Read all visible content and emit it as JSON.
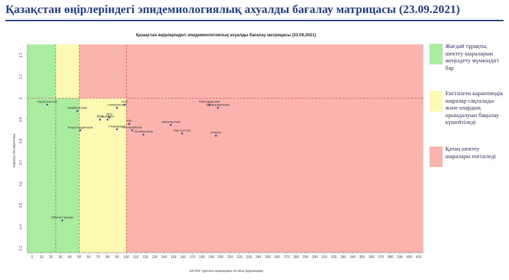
{
  "slide": {
    "title": "Қазақстан өңірлеріндегі эпидемиологиялық ахуалды бағалау матрицасы  (23.09.2021)"
  },
  "colors": {
    "title": "#1f3c88",
    "green_zone": "#a8eda0",
    "yellow_zone": "#fbf9b2",
    "red_zone": "#fbb3ae",
    "threshold_line": "#d9534f",
    "point": "#3b3b9a"
  },
  "legend": [
    {
      "label": "Жағдай тұрақты, шектеу шараларын жеңілдету мүмкіндігі бар",
      "color": "#a8eda0"
    },
    {
      "label": "Енгізілген карантиндік шаралар сақталады және олардың орындалуын бақылау күшейтіледі",
      "color": "#fbf9b2"
    },
    {
      "label": "Қатаң шектеу шаралары енгізіледі",
      "color": "#fbb3ae"
    }
  ],
  "chart_data": {
    "type": "scatter",
    "title": "Қазақстан өңірлеріндегі эпидемиологиялық ахуалды бағалау матрицасы  (23.09.2021)",
    "xlabel": "100 000 тұрғынға шаққандағы аптalық аурушаңдық",
    "ylabel": "Таралуы (R) көрсеткіші",
    "xlim": [
      -5,
      415
    ],
    "ylim": [
      0.28,
      1.25
    ],
    "x_ticks": [
      0,
      10,
      20,
      30,
      40,
      50,
      60,
      70,
      80,
      90,
      100,
      110,
      120,
      130,
      140,
      150,
      160,
      170,
      180,
      190,
      200,
      210,
      220,
      230,
      240,
      250,
      260,
      270,
      280,
      290,
      300,
      310,
      320,
      330,
      340,
      350,
      360,
      370,
      380,
      390,
      400,
      410
    ],
    "y_ticks": [
      0.3,
      0.4,
      0.5,
      0.6,
      0.7,
      0.8,
      0.9,
      1.0,
      1.1,
      1.2
    ],
    "y_tick_labels": [
      "0.3",
      "0.4",
      "0.5",
      "0.6",
      "0.7",
      "0.8",
      "0.9",
      "1",
      "1.1",
      "1.2"
    ],
    "thresholds": {
      "x": [
        25,
        50,
        100
      ],
      "y": 1.0
    },
    "zones": [
      {
        "name": "green",
        "x_range": [
          -5,
          25
        ],
        "y_range": [
          1.0,
          1.25
        ]
      },
      {
        "name": "green",
        "x_range": [
          -5,
          50
        ],
        "y_range": [
          0.28,
          1.0
        ]
      },
      {
        "name": "yellow",
        "x_range": [
          25,
          50
        ],
        "y_range": [
          1.0,
          1.25
        ]
      },
      {
        "name": "yellow",
        "x_range": [
          50,
          100
        ],
        "y_range": [
          0.28,
          1.0
        ]
      },
      {
        "name": "red",
        "x_range": [
          50,
          415
        ],
        "y_range": [
          1.0,
          1.25
        ]
      },
      {
        "name": "red",
        "x_range": [
          100,
          415
        ],
        "y_range": [
          0.28,
          1.0
        ]
      }
    ],
    "grid": false,
    "points": [
      {
        "label": "Түркістанская",
        "x": 16,
        "y": 0.97
      },
      {
        "label": "Жамбылская",
        "x": 48,
        "y": 0.94
      },
      {
        "label": "Кызылординская",
        "x": 51,
        "y": 0.85
      },
      {
        "label": "Мангистауская",
        "x": 32,
        "y": 0.43
      },
      {
        "label": "ВКО",
        "x": 72,
        "y": 0.9
      },
      {
        "label": "ЗКО",
        "x": 82,
        "y": 0.91
      },
      {
        "label": "Шымкент",
        "x": 80,
        "y": 0.9
      },
      {
        "label": "Атырауская",
        "x": 90,
        "y": 0.855
      },
      {
        "label": "Алматинская",
        "x": 90,
        "y": 0.955
      },
      {
        "label": "СКО",
        "x": 98,
        "y": 0.97
      },
      {
        "label": "Павлодарская",
        "x": 188,
        "y": 0.97
      },
      {
        "label": "Карагандинская",
        "x": 197,
        "y": 0.955
      },
      {
        "label": "ПО",
        "x": 103,
        "y": 0.88
      },
      {
        "label": "Костанайская",
        "x": 106,
        "y": 0.85
      },
      {
        "label": "Актюбинская",
        "x": 118,
        "y": 0.83
      },
      {
        "label": "Акмолинская",
        "x": 147,
        "y": 0.875
      },
      {
        "label": "Нур-Султан",
        "x": 159,
        "y": 0.835
      },
      {
        "label": "Алматы",
        "x": 195,
        "y": 0.825
      }
    ]
  }
}
